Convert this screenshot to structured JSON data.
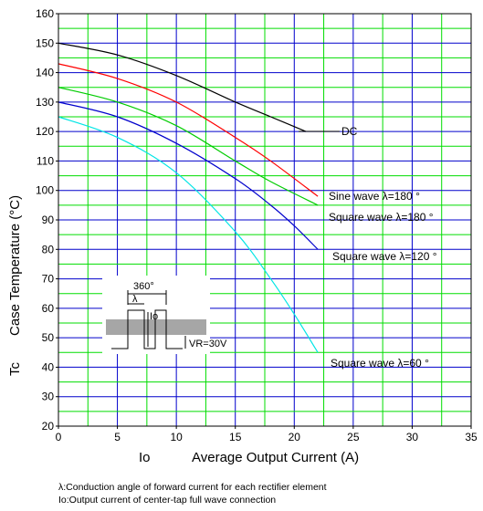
{
  "chart_data": {
    "type": "line",
    "xlabel": "Average Output Current   (A)",
    "xlabel_symbol": "Io",
    "ylabel": "Case Temperature   (°C)",
    "ylabel_symbol": "Tc",
    "xlim": [
      0,
      35
    ],
    "ylim": [
      20,
      160
    ],
    "x_ticks": [
      "0",
      "5",
      "10",
      "15",
      "20",
      "25",
      "30",
      "35"
    ],
    "y_ticks": [
      "20",
      "30",
      "40",
      "50",
      "60",
      "70",
      "80",
      "90",
      "100",
      "110",
      "120",
      "130",
      "140",
      "150",
      "160"
    ],
    "grid": true,
    "grid_colors": {
      "major": "#0000cc",
      "minor": "#00dd00"
    },
    "series": [
      {
        "name": "DC",
        "color": "#000000",
        "x": [
          0,
          5,
          10,
          15,
          18,
          21
        ],
        "y": [
          150,
          146,
          139,
          130,
          125,
          120
        ]
      },
      {
        "name": "Sine wave λ=180°",
        "color": "#ff0000",
        "x": [
          0,
          5,
          10,
          15,
          18,
          22
        ],
        "y": [
          143,
          138,
          130,
          118,
          110,
          98
        ]
      },
      {
        "name": "Square wave λ=180°",
        "color": "#00cc00",
        "x": [
          0,
          5,
          10,
          15,
          18,
          22
        ],
        "y": [
          135,
          130,
          122,
          110,
          103,
          95
        ]
      },
      {
        "name": "Square wave λ=120°",
        "color": "#0000cc",
        "x": [
          0,
          5,
          10,
          15,
          18,
          20,
          22
        ],
        "y": [
          130,
          125,
          116,
          104,
          95,
          88,
          80
        ]
      },
      {
        "name": "Square wave λ=60°",
        "color": "#00e5e5",
        "x": [
          0,
          5,
          10,
          15,
          18,
          20,
          22
        ],
        "y": [
          125,
          118,
          106,
          86,
          70,
          58,
          45
        ]
      }
    ],
    "curve_labels": [
      "DC",
      "Sine wave  λ=180 °",
      "Square wave  λ=180 °",
      "Square wave  λ=120 °",
      "Square wave  λ=60 °"
    ],
    "inset": {
      "period": "360°",
      "angle": "λ",
      "current": "Io",
      "voltage": "VR=30V"
    }
  },
  "footnotes": [
    "λ:Conduction angle of forward current for each rectifier element",
    "Io:Output current of center-tap full wave connection"
  ]
}
